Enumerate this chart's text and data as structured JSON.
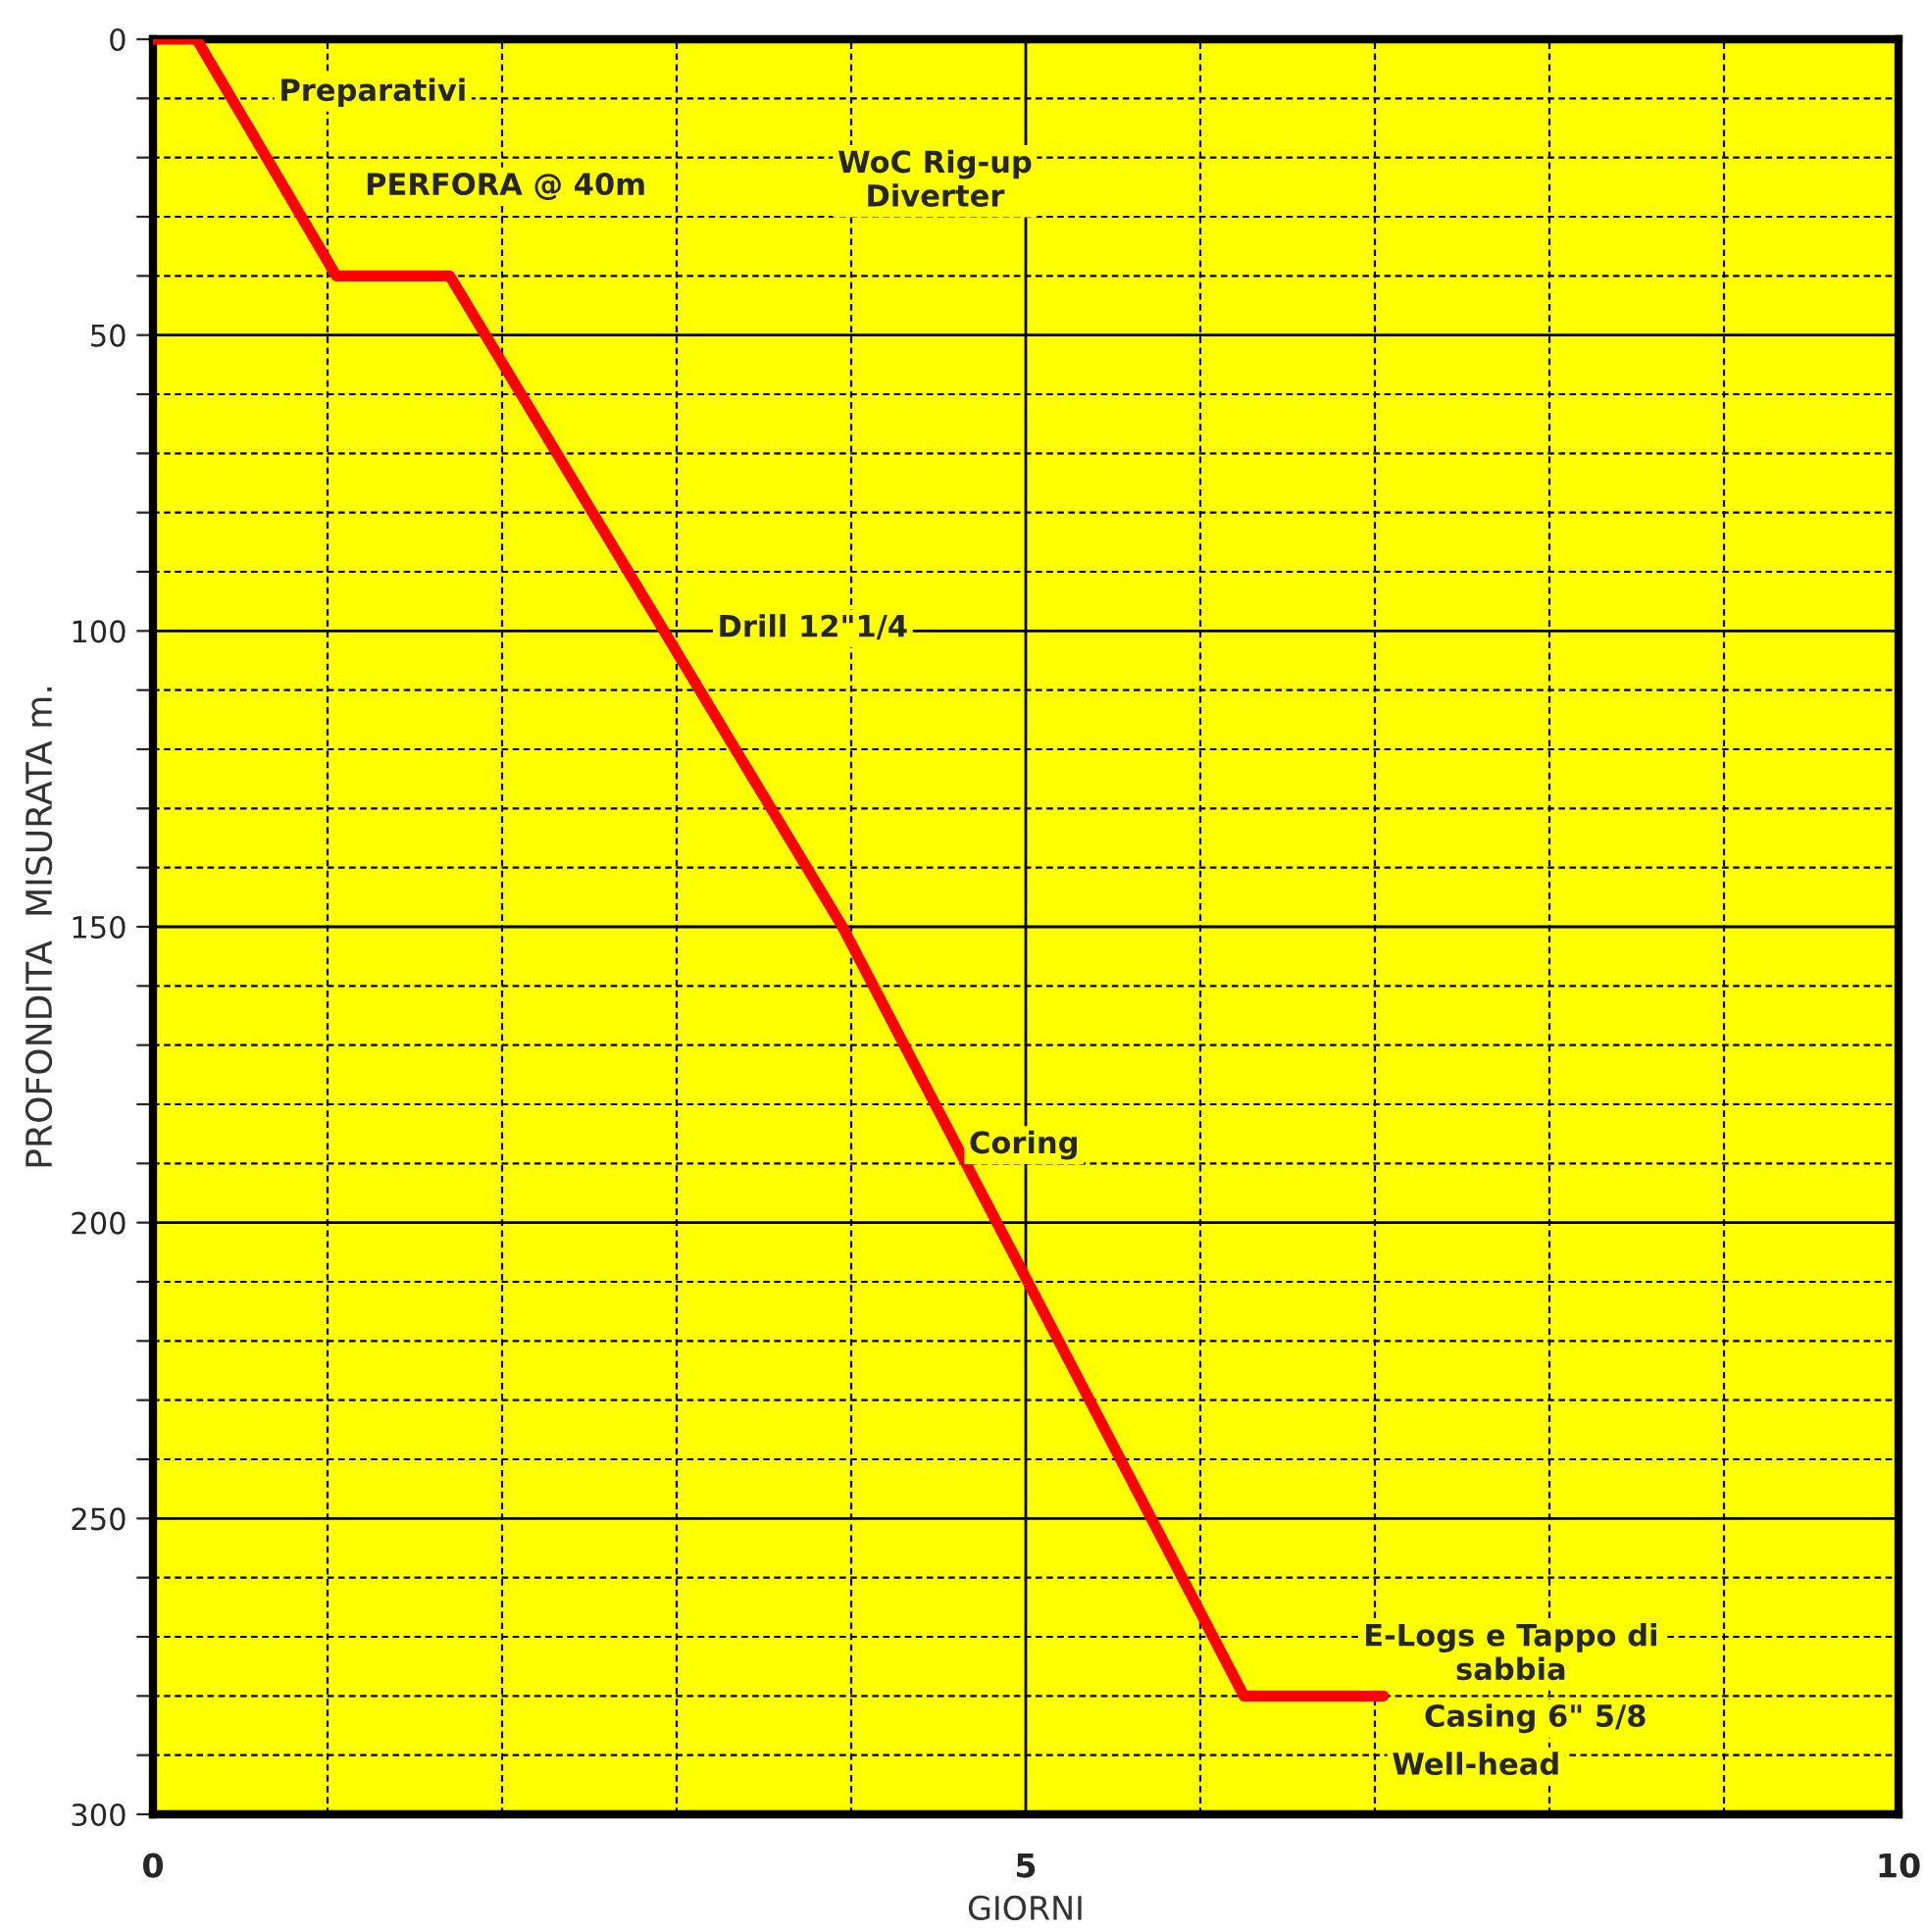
{
  "chart_data": {
    "type": "line",
    "xlabel": "GIORNI",
    "ylabel": "PROFONDITA  MISURATA m.",
    "x": [
      0,
      0.25,
      1.05,
      1.7,
      3.95,
      6.25,
      7.05
    ],
    "series": [
      {
        "color": "#ff0000",
        "values": [
          0,
          0,
          40,
          40,
          150,
          280,
          280
        ]
      }
    ],
    "xlim": [
      0,
      10
    ],
    "ylim": [
      300,
      0
    ],
    "xticks": [
      0,
      {
        "value": 1,
        "label": null
      },
      {
        "value": 2,
        "label": null
      },
      {
        "value": 3,
        "label": null
      },
      {
        "value": 4,
        "label": null
      },
      5,
      {
        "value": 6,
        "label": null
      },
      {
        "value": 7,
        "label": null
      },
      {
        "value": 8,
        "label": null
      },
      {
        "value": 9,
        "label": null
      },
      10
    ],
    "yticks": [
      0,
      {
        "value": 10,
        "label": null
      },
      {
        "value": 20,
        "label": null
      },
      {
        "value": 30,
        "label": null
      },
      {
        "value": 40,
        "label": null
      },
      50,
      {
        "value": 60,
        "label": null
      },
      {
        "value": 70,
        "label": null
      },
      {
        "value": 80,
        "label": null
      },
      {
        "value": 90,
        "label": null
      },
      100,
      {
        "value": 110,
        "label": null
      },
      {
        "value": 120,
        "label": null
      },
      {
        "value": 130,
        "label": null
      },
      {
        "value": 140,
        "label": null
      },
      150,
      {
        "value": 160,
        "label": null
      },
      {
        "value": 170,
        "label": null
      },
      {
        "value": 180,
        "label": null
      },
      {
        "value": 190,
        "label": null
      },
      200,
      {
        "value": 210,
        "label": null
      },
      {
        "value": 220,
        "label": null
      },
      {
        "value": 230,
        "label": null
      },
      {
        "value": 240,
        "label": null
      },
      250,
      {
        "value": 260,
        "label": null
      },
      {
        "value": 270,
        "label": null
      },
      {
        "value": 280,
        "label": null
      },
      {
        "value": 290,
        "label": null
      },
      300
    ],
    "grid": true,
    "marker": "none",
    "line_style": "solid",
    "annotations": [
      "Preparativi",
      "PERFORA @ 40m",
      "WoC Rig-up\nDiverter",
      "Drill 12\"1/4",
      "Coring",
      "E-Logs e Tappo di\nsabbia",
      "Casing 6\" 5/8",
      "Well-head"
    ]
  }
}
